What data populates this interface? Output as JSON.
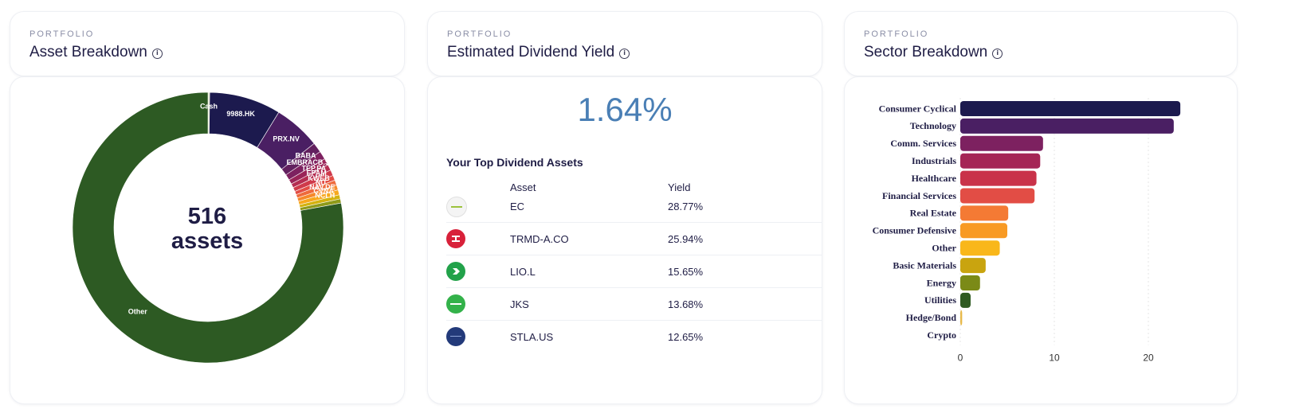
{
  "asset_breakdown": {
    "overline": "PORTFOLIO",
    "title": "Asset Breakdown",
    "center_count": "516",
    "center_label": "assets",
    "chart_data": {
      "type": "pie",
      "title": "Asset Breakdown",
      "slices": [
        {
          "label": "Cash",
          "value": 0.2,
          "color": "#dfe7c8"
        },
        {
          "label": "9988.HK",
          "value": 8.6,
          "color": "#1c1a4e"
        },
        {
          "label": "PRX.NV",
          "value": 5.6,
          "color": "#4a1f63"
        },
        {
          "label": "BABA",
          "value": 1.2,
          "color": "#62205f"
        },
        {
          "label": "EMBRACB.ST",
          "value": 1.0,
          "color": "#7d2160"
        },
        {
          "label": "TEP.PA",
          "value": 0.8,
          "color": "#9a2458"
        },
        {
          "label": "EPAM",
          "value": 0.7,
          "color": "#b42d52"
        },
        {
          "label": "KWEB",
          "value": 0.7,
          "color": "#cf3a4b"
        },
        {
          "label": "NU",
          "value": 0.6,
          "color": "#e24d45"
        },
        {
          "label": "NAV.DE",
          "value": 0.6,
          "color": "#ee6a3c"
        },
        {
          "label": "CVNA",
          "value": 0.6,
          "color": "#f5892b"
        },
        {
          "label": "NCLH",
          "value": 0.6,
          "color": "#f8a81e"
        },
        {
          "label": "",
          "value": 0.5,
          "color": "#d4b20f"
        },
        {
          "label": "",
          "value": 0.5,
          "color": "#8f9a1a"
        },
        {
          "label": "Other",
          "value": 78.3,
          "color": "#2d5a23"
        }
      ]
    }
  },
  "dividend_yield": {
    "overline": "PORTFOLIO",
    "title": "Estimated Dividend Yield",
    "value": "1.64%",
    "top_heading": "Your Top Dividend Assets",
    "col_asset": "Asset",
    "col_yield": "Yield",
    "rows": [
      {
        "asset": "EC",
        "yield": "28.77%",
        "logo_icon": "ecopetrol-logo-icon",
        "logo_color": "#f4f4f4"
      },
      {
        "asset": "TRMD-A.CO",
        "yield": "25.94%",
        "logo_icon": "torm-logo-icon",
        "logo_color": "#d8213a"
      },
      {
        "asset": "LIO.L",
        "yield": "15.65%",
        "logo_icon": "liontrust-logo-icon",
        "logo_color": "#22a24a"
      },
      {
        "asset": "JKS",
        "yield": "13.68%",
        "logo_icon": "jinko-logo-icon",
        "logo_color": "#33b24a"
      },
      {
        "asset": "STLA.US",
        "yield": "12.65%",
        "logo_icon": "stellantis-logo-icon",
        "logo_color": "#233a7a"
      }
    ]
  },
  "sector_breakdown": {
    "overline": "PORTFOLIO",
    "title": "Sector Breakdown",
    "chart_data": {
      "type": "bar",
      "orientation": "horizontal",
      "categories": [
        "Consumer Cyclical",
        "Technology",
        "Comm. Services",
        "Industrials",
        "Healthcare",
        "Financial Services",
        "Real Estate",
        "Consumer Defensive",
        "Other",
        "Basic Materials",
        "Energy",
        "Utilities",
        "Hedge/Bond",
        "Crypto"
      ],
      "values": [
        23.4,
        22.7,
        8.8,
        8.5,
        8.1,
        7.9,
        5.1,
        5.0,
        4.2,
        2.7,
        2.1,
        1.1,
        0.2,
        0
      ],
      "colors": [
        "#1c1a4e",
        "#4a1f63",
        "#7d2160",
        "#a52656",
        "#c93249",
        "#e24d45",
        "#f47a34",
        "#f89a24",
        "#f9b71a",
        "#c9a40f",
        "#7b8a17",
        "#2f5a22",
        "#e8b94a",
        "#cccccc"
      ],
      "xticks": [
        "0",
        "10",
        "20"
      ],
      "xlim": [
        0,
        25
      ],
      "grid": true
    }
  }
}
